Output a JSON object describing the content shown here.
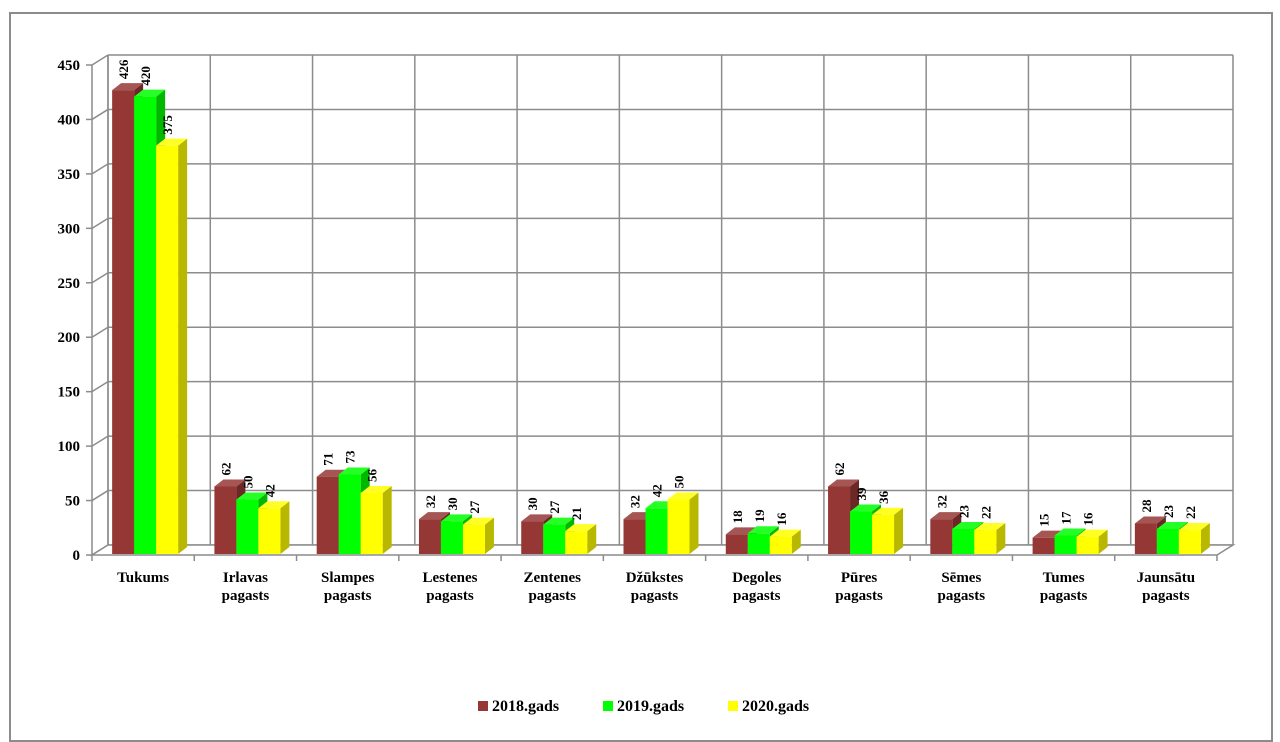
{
  "chart_data": {
    "type": "bar",
    "categories": [
      [
        "Tukums"
      ],
      [
        "Irlavas",
        "pagasts"
      ],
      [
        "Slampes",
        "pagasts"
      ],
      [
        "Lestenes",
        "pagasts"
      ],
      [
        "Zentenes",
        "pagasts"
      ],
      [
        "Džūkstes",
        "pagasts"
      ],
      [
        "Degoles",
        "pagasts"
      ],
      [
        "Pūres",
        "pagasts"
      ],
      [
        "Sēmes",
        "pagasts"
      ],
      [
        "Tumes",
        "pagasts"
      ],
      [
        "Jaunsātu",
        "pagasts"
      ]
    ],
    "series": [
      {
        "name": "2018.gads",
        "values": [
          426,
          62,
          71,
          32,
          30,
          32,
          18,
          62,
          32,
          15,
          28
        ],
        "color": "#953735"
      },
      {
        "name": "2019.gads",
        "values": [
          420,
          50,
          73,
          30,
          27,
          42,
          19,
          39,
          23,
          17,
          23
        ],
        "color": "#00ff00"
      },
      {
        "name": "2020.gads",
        "values": [
          375,
          42,
          56,
          27,
          21,
          50,
          16,
          36,
          22,
          16,
          22
        ],
        "color": "#ffff00"
      }
    ],
    "ylim": [
      0,
      450
    ],
    "yticks": [
      0,
      50,
      100,
      150,
      200,
      250,
      300,
      350,
      400,
      450
    ],
    "grid": true,
    "legend_position": "bottom",
    "title": "",
    "xlabel": "",
    "ylabel": ""
  }
}
